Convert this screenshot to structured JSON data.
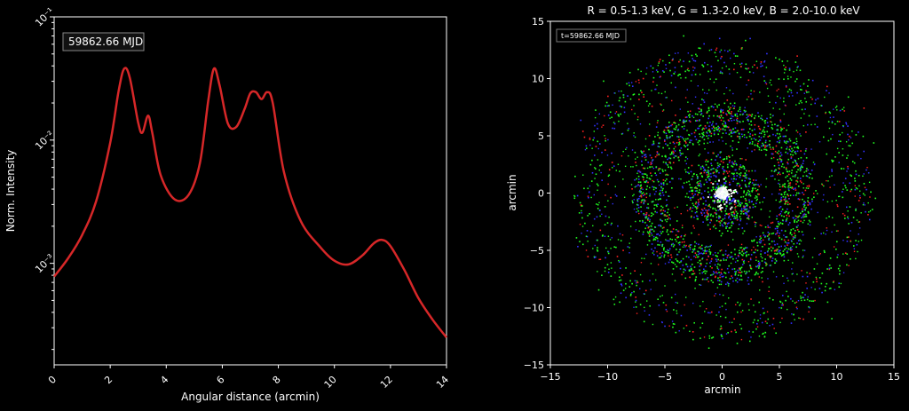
{
  "chart_data": [
    {
      "type": "line",
      "xlabel": "Angular distance (arcmin)",
      "ylabel": "Norm. Intensity",
      "yscale": "log",
      "xlim": [
        0,
        14
      ],
      "ylim": [
        0.00015,
        0.1
      ],
      "x_ticks": [
        "0",
        "2",
        "4",
        "6",
        "8",
        "10",
        "12",
        "14"
      ],
      "y_ticks": [
        "10⁻¹",
        "10⁻²",
        "10⁻³"
      ],
      "annotation": "59862.66 MJD",
      "line_color": "#d62728",
      "series": [
        {
          "x": [
            0,
            0.5,
            1.0,
            1.5,
            2.0,
            2.3,
            2.5,
            2.7,
            3.0,
            3.15,
            3.35,
            3.5,
            3.8,
            4.3,
            4.8,
            5.2,
            5.5,
            5.7,
            5.9,
            6.2,
            6.5,
            6.8,
            7.0,
            7.2,
            7.4,
            7.6,
            7.8,
            8.2,
            8.8,
            9.5,
            10.0,
            10.5,
            11.0,
            11.4,
            11.7,
            12.0,
            12.5,
            13.0,
            13.5,
            14.0
          ],
          "y": [
            0.00078,
            0.0011,
            0.0017,
            0.0032,
            0.0095,
            0.025,
            0.038,
            0.032,
            0.0138,
            0.0115,
            0.0158,
            0.0115,
            0.0052,
            0.0033,
            0.0036,
            0.0065,
            0.021,
            0.038,
            0.028,
            0.0136,
            0.0128,
            0.018,
            0.024,
            0.0245,
            0.0215,
            0.0245,
            0.02,
            0.0055,
            0.0022,
            0.00135,
            0.00105,
            0.00098,
            0.00116,
            0.00145,
            0.00155,
            0.00138,
            0.00088,
            0.00052,
            0.00035,
            0.00025
          ]
        }
      ]
    },
    {
      "type": "scatter",
      "title": "R = 0.5-1.3 keV, G = 1.3-2.0 keV, B = 2.0-10.0 keV",
      "xlabel": "arcmin",
      "ylabel": "arcmin",
      "xlim": [
        -15,
        15
      ],
      "ylim": [
        -15,
        15
      ],
      "x_ticks": [
        "−15",
        "−10",
        "−5",
        "0",
        "5",
        "10",
        "15"
      ],
      "y_ticks": [
        "15",
        "10",
        "5",
        "0",
        "−5",
        "−10",
        "−15"
      ],
      "annotation": "t=59862.66 MJD",
      "channels": {
        "R": "#ff2020",
        "G": "#20ff20",
        "B": "#3030ff"
      },
      "rings_arcmin": [
        2.5,
        5.6,
        7.2,
        11.7
      ]
    }
  ]
}
